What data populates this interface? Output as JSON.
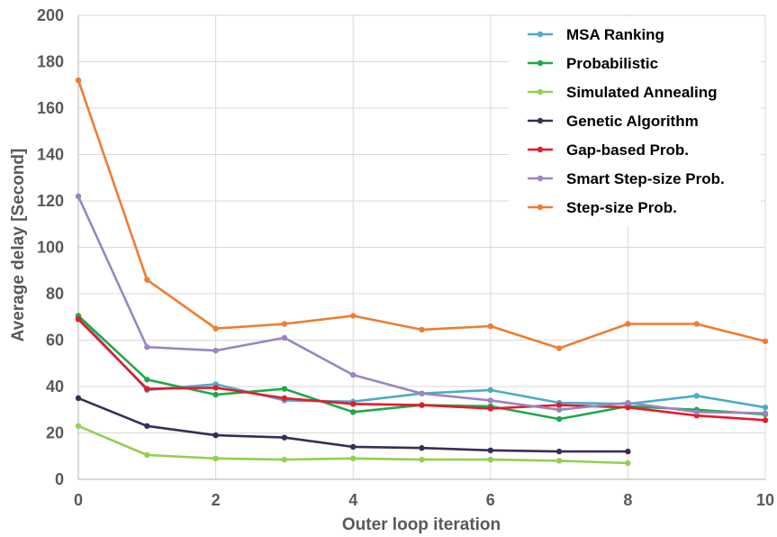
{
  "chart_data": {
    "type": "line",
    "title": "",
    "xlabel": "Outer loop iteration",
    "ylabel": "Average delay [Second]",
    "xlim": [
      0,
      10
    ],
    "ylim": [
      0,
      200
    ],
    "xticks": [
      0,
      2,
      4,
      6,
      8,
      10
    ],
    "yticks": [
      0,
      20,
      40,
      60,
      80,
      100,
      120,
      140,
      160,
      180,
      200
    ],
    "grid": true,
    "legend_position": "top-right",
    "series": [
      {
        "name": "MSA Ranking",
        "color": "#4bacc6",
        "x": [
          0,
          1,
          2,
          3,
          4,
          5,
          6,
          7,
          8,
          9,
          10
        ],
        "values": [
          70,
          38.5,
          41,
          34,
          33.5,
          37,
          38.5,
          33,
          32.5,
          36,
          31
        ]
      },
      {
        "name": "Probabilistic",
        "color": "#1fa84a",
        "x": [
          0,
          1,
          2,
          3,
          4,
          5,
          6,
          7,
          8,
          9,
          10
        ],
        "values": [
          70.5,
          43,
          36.5,
          39,
          29,
          32,
          31.5,
          26,
          31.5,
          30,
          28
        ]
      },
      {
        "name": "Simulated Annealing",
        "color": "#92d050",
        "x": [
          0,
          1,
          2,
          3,
          4,
          5,
          6,
          7,
          8
        ],
        "values": [
          23,
          10.5,
          9,
          8.5,
          9,
          8.5,
          8.5,
          8,
          7
        ]
      },
      {
        "name": "Genetic Algorithm",
        "color": "#3b2c55",
        "x": [
          0,
          1,
          2,
          3,
          4,
          5,
          6,
          7,
          8
        ],
        "values": [
          35,
          23,
          19,
          18,
          14,
          13.5,
          12.5,
          12,
          12
        ]
      },
      {
        "name": "Gap-based Prob.",
        "color": "#e8192c",
        "x": [
          0,
          1,
          2,
          3,
          4,
          5,
          6,
          7,
          8,
          9,
          10
        ],
        "values": [
          69,
          39,
          39.5,
          35,
          32.5,
          32,
          30.5,
          32,
          31,
          27.5,
          25.5
        ]
      },
      {
        "name": "Smart Step-size Prob.",
        "color": "#9a86bf",
        "x": [
          0,
          1,
          2,
          3,
          4,
          5,
          6,
          7,
          8,
          9,
          10
        ],
        "values": [
          122,
          57,
          55.5,
          61,
          45,
          37,
          34,
          30,
          33,
          29,
          28.5
        ]
      },
      {
        "name": "Step-size Prob.",
        "color": "#ed7d31",
        "x": [
          0,
          1,
          2,
          3,
          4,
          5,
          6,
          7,
          8,
          9,
          10
        ],
        "values": [
          172,
          86,
          65,
          67,
          70.5,
          64.5,
          66,
          56.5,
          67,
          67,
          59.5
        ]
      }
    ]
  }
}
